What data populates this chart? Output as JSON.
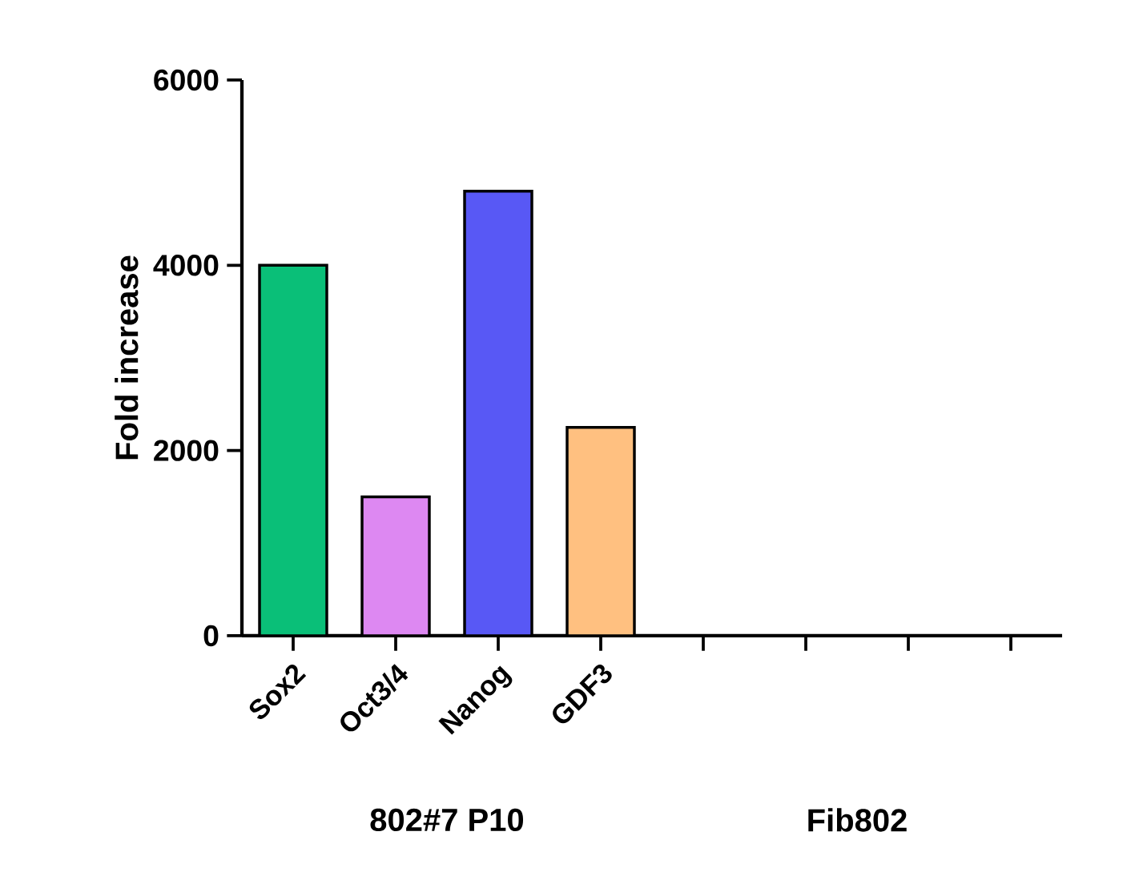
{
  "chart_data": {
    "type": "bar",
    "ylabel": "Fold increase",
    "categories": [
      "Sox2",
      "Oct3/4",
      "Nanog",
      "GDF3",
      null,
      null,
      null,
      null
    ],
    "values": [
      4000,
      1500,
      4800,
      2250,
      0,
      0,
      0,
      0
    ],
    "colors": [
      "#0abf78",
      "#dd88f2",
      "#5858f5",
      "#ffc080",
      "#000000",
      "#000000",
      "#000000",
      "#000000"
    ],
    "ylim": [
      0,
      6000
    ],
    "yticks": [
      0,
      2000,
      4000,
      6000
    ],
    "annotations": [
      "802#7 P10",
      "Fib802"
    ]
  }
}
